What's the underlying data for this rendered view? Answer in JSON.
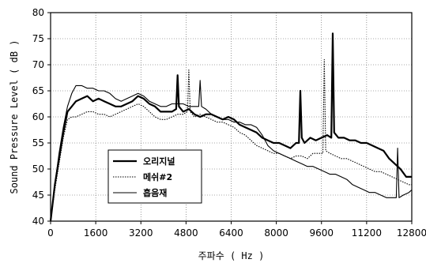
{
  "chart_data": {
    "type": "line",
    "xlabel": "주파수 ( Hz )",
    "ylabel": "Sound Pressure Level ( dB )",
    "xlim": [
      0,
      12800
    ],
    "ylim": [
      40,
      80
    ],
    "x_ticks": [
      "0",
      "1600",
      "3200",
      "4800",
      "6400",
      "8000",
      "9600",
      "11200",
      "12800"
    ],
    "y_ticks": [
      "40",
      "45",
      "50",
      "55",
      "60",
      "65",
      "70",
      "75",
      "80"
    ],
    "grid": true,
    "legend_position": "lower-left",
    "series": [
      {
        "name": "오리지널",
        "style": "solid-thick",
        "color": "#000000",
        "x": [
          0,
          150,
          300,
          450,
          600,
          750,
          900,
          1100,
          1300,
          1500,
          1700,
          1900,
          2100,
          2300,
          2500,
          2700,
          2900,
          3100,
          3300,
          3500,
          3700,
          3900,
          4100,
          4300,
          4450,
          4500,
          4550,
          4700,
          4900,
          5100,
          5300,
          5500,
          5700,
          5900,
          6100,
          6300,
          6500,
          6700,
          6900,
          7100,
          7300,
          7500,
          7700,
          7900,
          8100,
          8300,
          8500,
          8700,
          8800,
          8850,
          8900,
          9000,
          9200,
          9400,
          9600,
          9800,
          9950,
          10000,
          10050,
          10200,
          10400,
          10600,
          10800,
          11000,
          11200,
          11400,
          11600,
          11800,
          12000,
          12200,
          12400,
          12600,
          12800
        ],
        "y": [
          40,
          47,
          52,
          57,
          61,
          62,
          63,
          63.5,
          64,
          63,
          63.5,
          63,
          62.5,
          62,
          62,
          62.5,
          63,
          64,
          63.5,
          62.5,
          62,
          61,
          61,
          61,
          61.5,
          68,
          62,
          61,
          61.5,
          60.5,
          60,
          60.5,
          60.5,
          60,
          59.5,
          60,
          59.5,
          58.5,
          58,
          57.5,
          57,
          56,
          55.5,
          55,
          55,
          54.5,
          54,
          55,
          55,
          65,
          56,
          55,
          56,
          55.5,
          56,
          56.5,
          56,
          76,
          57,
          56,
          56,
          55.5,
          55.5,
          55,
          55,
          54.5,
          54,
          53.5,
          52,
          51,
          50,
          48.5,
          48.5
        ]
      },
      {
        "name": "메쉬#2",
        "style": "dotted",
        "color": "#000000",
        "x": [
          0,
          150,
          300,
          450,
          600,
          750,
          900,
          1100,
          1300,
          1500,
          1700,
          1900,
          2100,
          2300,
          2500,
          2700,
          2900,
          3100,
          3300,
          3500,
          3700,
          3900,
          4100,
          4300,
          4500,
          4700,
          4850,
          4900,
          4950,
          5100,
          5300,
          5500,
          5700,
          5900,
          6100,
          6300,
          6500,
          6700,
          6900,
          7100,
          7300,
          7500,
          7700,
          7900,
          8100,
          8300,
          8500,
          8700,
          8900,
          9100,
          9300,
          9500,
          9650,
          9700,
          9750,
          9900,
          10100,
          10300,
          10500,
          10700,
          10900,
          11100,
          11300,
          11500,
          11700,
          11900,
          12100,
          12300,
          12500,
          12700,
          12800
        ],
        "y": [
          40,
          46,
          51,
          56,
          59.5,
          60,
          60,
          60.5,
          61,
          61,
          60.5,
          60.5,
          60,
          60.5,
          61,
          61.5,
          62,
          62.5,
          62,
          61,
          60,
          59.5,
          59.5,
          60,
          60.5,
          60.5,
          61,
          69,
          61,
          60,
          60.5,
          60,
          59.5,
          59,
          59,
          58.5,
          58,
          57,
          56.5,
          55.5,
          54.5,
          54,
          53.5,
          53,
          53,
          52.5,
          52,
          52.5,
          52.5,
          52,
          53,
          53,
          53,
          71,
          53.5,
          53,
          52.5,
          52,
          52,
          51.5,
          51,
          50.5,
          50,
          49.5,
          49.5,
          49,
          48.5,
          48,
          47.5,
          47,
          47
        ]
      },
      {
        "name": "흡음재",
        "style": "solid-thin",
        "color": "#000000",
        "x": [
          0,
          150,
          300,
          450,
          600,
          750,
          900,
          1100,
          1300,
          1500,
          1700,
          1900,
          2100,
          2300,
          2500,
          2700,
          2900,
          3100,
          3300,
          3500,
          3700,
          3900,
          4100,
          4300,
          4500,
          4700,
          4900,
          5100,
          5250,
          5300,
          5350,
          5500,
          5700,
          5900,
          6100,
          6300,
          6500,
          6700,
          6900,
          7100,
          7300,
          7500,
          7700,
          7900,
          8100,
          8300,
          8500,
          8700,
          8900,
          9100,
          9300,
          9500,
          9700,
          9900,
          10100,
          10300,
          10500,
          10700,
          10900,
          11100,
          11300,
          11500,
          11700,
          11900,
          12100,
          12250,
          12300,
          12350,
          12500,
          12700,
          12800
        ],
        "y": [
          40,
          47,
          53,
          58,
          62,
          64.5,
          66,
          66,
          65.5,
          65.5,
          65,
          65,
          64.5,
          63.5,
          63,
          63.5,
          64,
          64.5,
          64,
          63,
          62.5,
          62,
          62,
          62.5,
          62.5,
          62.5,
          62,
          62,
          62,
          67,
          62,
          61.5,
          60.5,
          60,
          59.5,
          59.5,
          59,
          59,
          58.5,
          58.5,
          58,
          56.5,
          54.5,
          53.5,
          53,
          52.5,
          52,
          51.5,
          51,
          50.5,
          50.5,
          50,
          49.5,
          49,
          49,
          48.5,
          48,
          47,
          46.5,
          46,
          45.5,
          45.5,
          45,
          44.5,
          44.5,
          44.5,
          54,
          44.5,
          45,
          45.5,
          46
        ]
      }
    ]
  }
}
